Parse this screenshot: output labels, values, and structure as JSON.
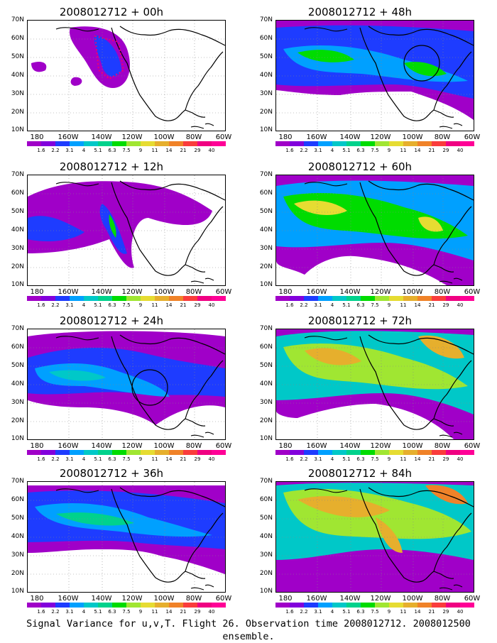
{
  "panels": [
    {
      "title": "2008012712 + 00h",
      "level": 0,
      "circle": false,
      "obs_box": true
    },
    {
      "title": "2008012712 + 12h",
      "level": 1,
      "circle": false,
      "obs_box": false
    },
    {
      "title": "2008012712 + 24h",
      "level": 2,
      "circle": true,
      "obs_box": false
    },
    {
      "title": "2008012712 + 36h",
      "level": 3,
      "circle": false,
      "obs_box": false
    },
    {
      "title": "2008012712 + 48h",
      "level": 4,
      "circle": true,
      "obs_box": false
    },
    {
      "title": "2008012712 + 60h",
      "level": 5,
      "circle": false,
      "obs_box": false
    },
    {
      "title": "2008012712 + 72h",
      "level": 6,
      "circle": false,
      "obs_box": false
    },
    {
      "title": "2008012712 + 84h",
      "level": 7,
      "circle": false,
      "obs_box": false
    }
  ],
  "lat_labels": [
    "70N",
    "60N",
    "50N",
    "40N",
    "30N",
    "20N",
    "10N"
  ],
  "lon_labels": [
    "180",
    "160W",
    "140W",
    "120W",
    "100W",
    "80W",
    "60W"
  ],
  "colorbar": {
    "levels": [
      "1.6",
      "2.2",
      "3.1",
      "4",
      "5.1",
      "6.3",
      "7.5",
      "9",
      "11",
      "14",
      "21",
      "29",
      "40"
    ],
    "colors": [
      "#a000c8",
      "#8200dc",
      "#1e3cff",
      "#00a0ff",
      "#00c8c8",
      "#00d28c",
      "#00dc00",
      "#a0e632",
      "#e6dc32",
      "#e6af2d",
      "#f08228",
      "#fa3c3c",
      "#f00082",
      "#ff0096"
    ]
  },
  "caption": "Signal Variance for u,v,T. Flight 26. Observation time 2008012712. 2008012500 ensemble."
}
